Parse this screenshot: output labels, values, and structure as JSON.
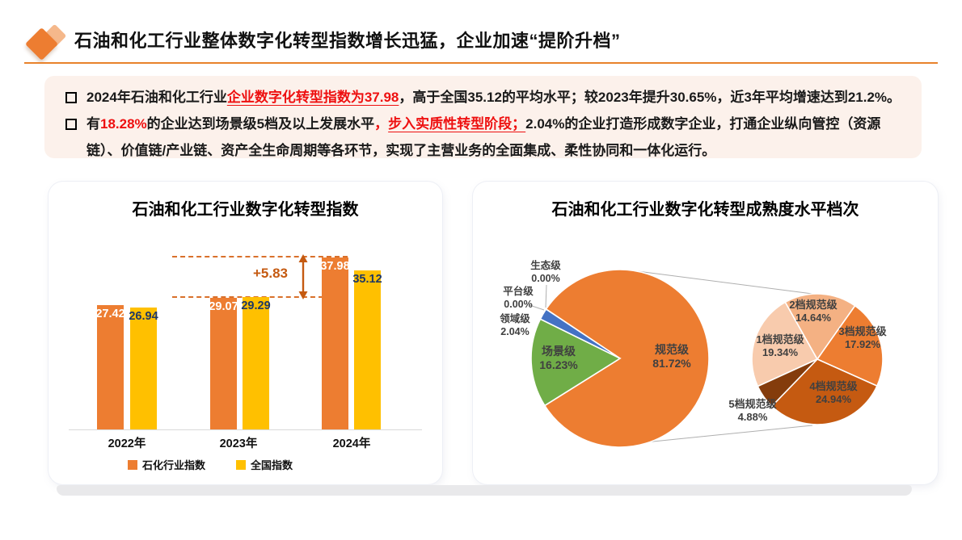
{
  "header": {
    "title": "石油和化工行业整体数字化转型指数增长迅猛，企业加速“提阶升档”"
  },
  "summary": {
    "b1": {
      "s1": "2024年石油和化工行业",
      "s2": "企业数字化转型指数为37.98",
      "s3": "，高于全国35.12的平均水平；较2023年提升30.65%，近3年平均增速达到21.2%。"
    },
    "b2": {
      "s1": "有",
      "s2": "18.28%",
      "s3": "的企业达到场景级5档及以上发展水平",
      "s4": "，",
      "s5": "步入实质性转型阶段；",
      "s6": "2.04%的企业打造形成数字企业，打通企业纵向管控（资源链）、价值链/产业链、资产全生命周期等各环节，实现了主营业务的全面集成、柔性协同和一体化运行。"
    }
  },
  "chart_data": [
    {
      "type": "bar",
      "title": "石油和化工行业数字化转型指数",
      "categories": [
        "2022年",
        "2023年",
        "2024年"
      ],
      "series": [
        {
          "name": "石化行业指数",
          "color": "#ED7D31",
          "values": [
            27.42,
            29.07,
            37.98
          ]
        },
        {
          "name": "全国指数",
          "color": "#FFC000",
          "values": [
            26.94,
            29.29,
            35.12
          ]
        }
      ],
      "annotation": "+5.83",
      "ylim": [
        0,
        40
      ],
      "grid": false,
      "legend_position": "bottom"
    },
    {
      "type": "pie",
      "title": "石油和化工行业数字化转型成熟度水平档次",
      "slices": [
        {
          "label": "规范级",
          "pct": "81.72%",
          "value": 81.72,
          "color": "#ED7D31"
        },
        {
          "label": "场景级",
          "pct": "16.23%",
          "value": 16.23,
          "color": "#70AD47"
        },
        {
          "label": "领域级",
          "pct": "2.04%",
          "value": 2.04,
          "color": "#4472C4"
        },
        {
          "label": "平台级",
          "pct": "0.00%",
          "value": 0,
          "color": "#FFC000"
        },
        {
          "label": "生态级",
          "pct": "0.00%",
          "value": 0,
          "color": "#5B9BD5"
        }
      ],
      "secondary": {
        "parent": "规范级",
        "slices": [
          {
            "label": "1档规范级",
            "pct": "19.34%",
            "value": 19.34,
            "color": "#F8CBAD"
          },
          {
            "label": "2档规范级",
            "pct": "14.64%",
            "value": 14.64,
            "color": "#F4B183"
          },
          {
            "label": "3档规范级",
            "pct": "17.92%",
            "value": 17.92,
            "color": "#ED7D31"
          },
          {
            "label": "4档规范级",
            "pct": "24.94%",
            "value": 24.94,
            "color": "#C55A11"
          },
          {
            "label": "5档规范级",
            "pct": "4.88%",
            "value": 4.88,
            "color": "#843C0C"
          }
        ]
      }
    }
  ]
}
